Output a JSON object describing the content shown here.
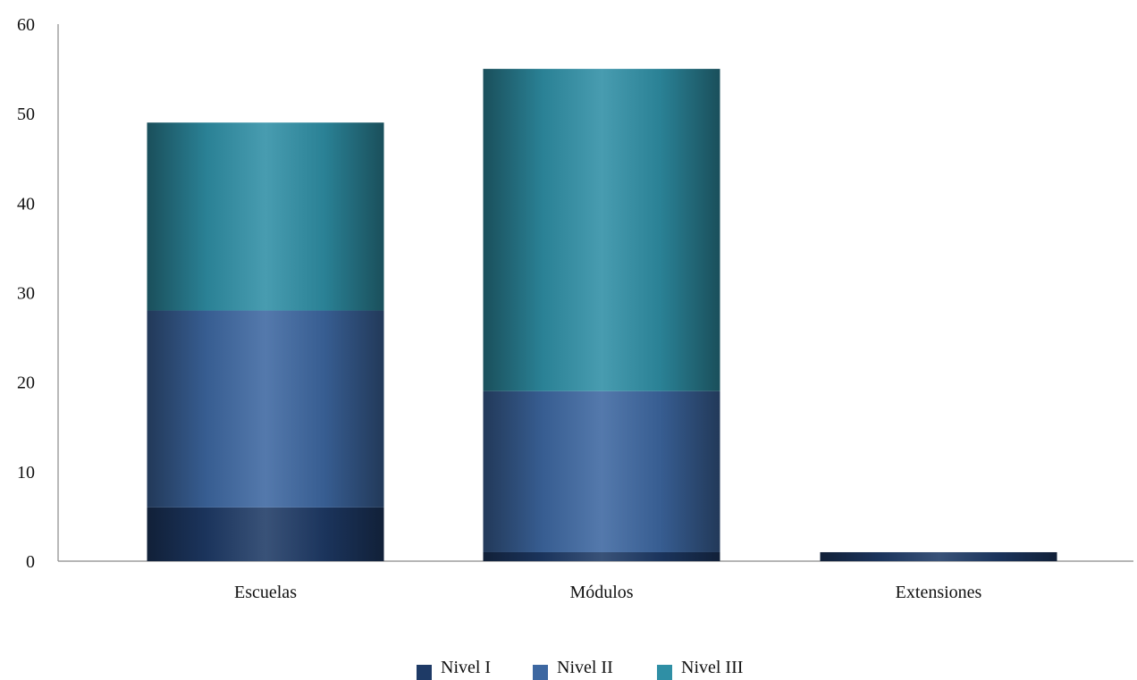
{
  "chart_data": {
    "type": "bar",
    "stacked": true,
    "categories": [
      "Escuelas",
      "Módulos",
      "Extensiones"
    ],
    "series": [
      {
        "name": "Nivel I",
        "color": "#1e3a66",
        "values": [
          6,
          1,
          1
        ]
      },
      {
        "name": "Nivel II",
        "color": "#3d67a1",
        "values": [
          22,
          18,
          0
        ]
      },
      {
        "name": "Nivel III",
        "color": "#2f8fa5",
        "values": [
          21,
          36,
          0
        ]
      }
    ],
    "ylim": [
      0,
      60
    ],
    "yticks": [
      0,
      10,
      20,
      30,
      40,
      50,
      60
    ],
    "title": "",
    "xlabel": "",
    "ylabel": "",
    "grid": false,
    "legend": "bottom"
  }
}
